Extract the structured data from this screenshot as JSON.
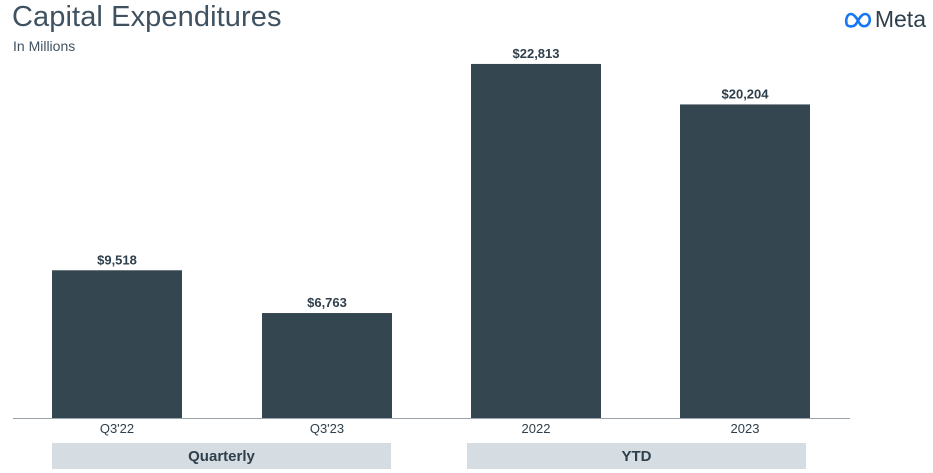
{
  "header": {
    "title": "Capital Expenditures",
    "subtitle": "In Millions",
    "brand": "Meta"
  },
  "colors": {
    "bar": "#34464f",
    "group_band": "#d5dce2",
    "text": "#2f3f4b"
  },
  "chart_data": {
    "type": "bar",
    "title": "Capital Expenditures",
    "subtitle": "In Millions",
    "categories": [
      "Q3'22",
      "Q3'23",
      "2022",
      "2023"
    ],
    "values": [
      9518,
      6763,
      22813,
      20204
    ],
    "value_labels": [
      "$9,518",
      "$6,763",
      "$22,813",
      "$20,204"
    ],
    "groups": [
      {
        "label": "Quarterly",
        "categories": [
          "Q3'22",
          "Q3'23"
        ]
      },
      {
        "label": "YTD",
        "categories": [
          "2022",
          "2023"
        ]
      }
    ],
    "ylim": [
      0,
      25000
    ],
    "grid": false,
    "legend": "none"
  }
}
